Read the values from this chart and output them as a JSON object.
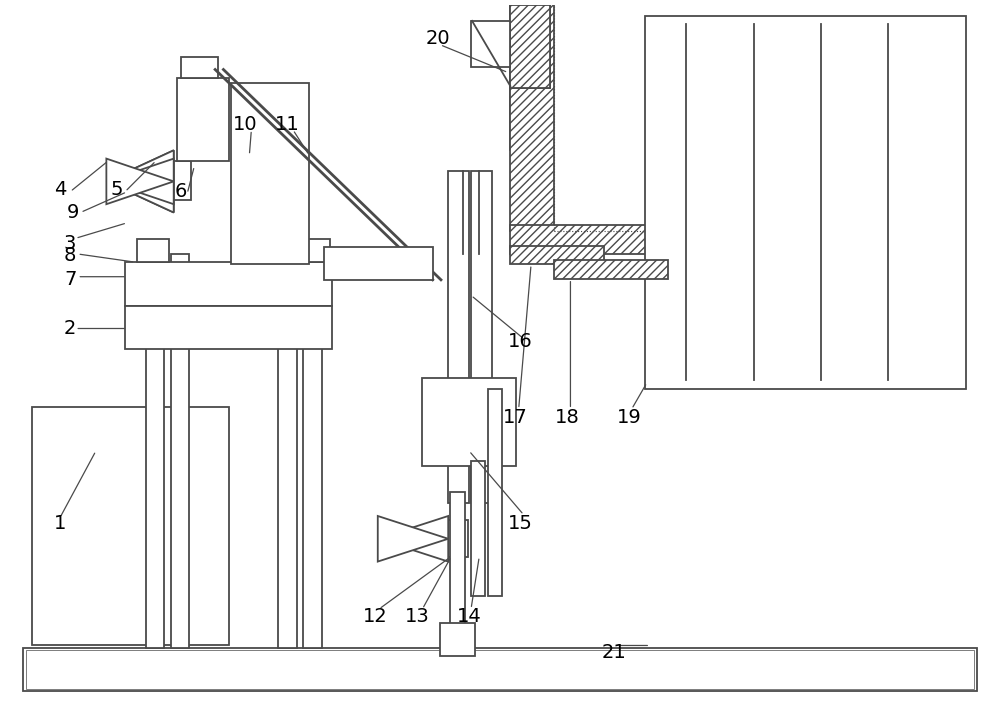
{
  "bg_color": "#ffffff",
  "lc": "#4a4a4a",
  "lw": 1.3,
  "figsize": [
    10.0,
    7.15
  ],
  "dpi": 100
}
